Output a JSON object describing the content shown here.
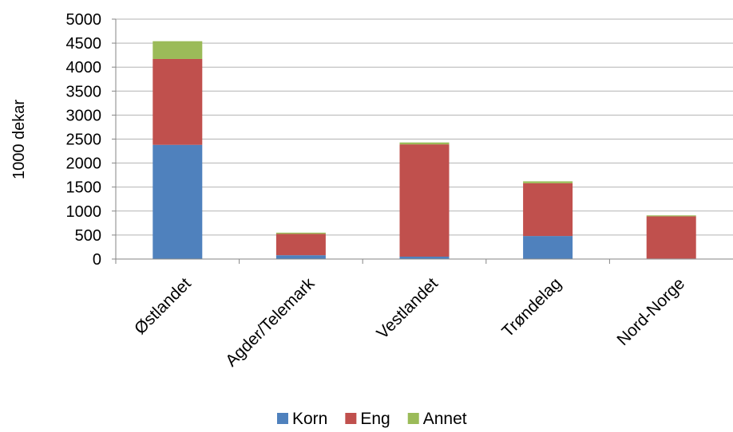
{
  "chart_data": {
    "type": "bar",
    "stacked": true,
    "categories": [
      "Østlandet",
      "Agder/Telemark",
      "Vestlandet",
      "Trøndelag",
      "Nord-Norge"
    ],
    "series": [
      {
        "name": "Korn",
        "color": "#4F81BD",
        "values": [
          2380,
          80,
          50,
          480,
          10
        ]
      },
      {
        "name": "Eng",
        "color": "#C0504D",
        "values": [
          1790,
          445,
          2340,
          1100,
          880
        ]
      },
      {
        "name": "Annet",
        "color": "#9BBB59",
        "values": [
          370,
          25,
          40,
          40,
          20
        ]
      }
    ],
    "ylabel": "1000 dekar",
    "ylim": [
      0,
      5000
    ],
    "yticks": [
      0,
      500,
      1000,
      1500,
      2000,
      2500,
      3000,
      3500,
      4000,
      4500,
      5000
    ],
    "grid": true,
    "legend_position": "bottom"
  }
}
